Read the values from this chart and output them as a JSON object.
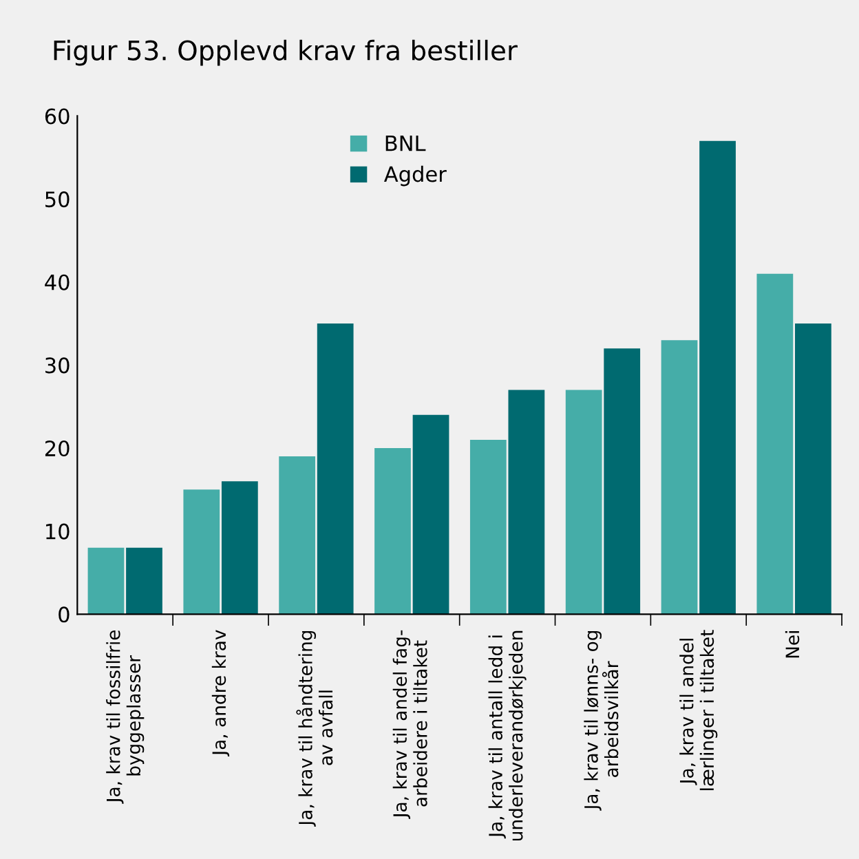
{
  "chart_data": {
    "type": "bar",
    "title": "Figur 53. Opplevd krav fra bestiller",
    "categories": [
      "Ja, krav til fossilfrie\nbyggeplasser",
      "Ja, andre krav",
      "Ja, krav til håndtering\nav avfall",
      "Ja, krav til andel fag-\narbeidere i tiltaket",
      "Ja, krav til antall ledd i\nunderleverandørkjeden",
      "Ja, krav til lønns- og\narbeidsvilkår",
      "Ja, krav til andel\nlærlinger i tiltaket",
      "Nei"
    ],
    "series": [
      {
        "name": "BNL",
        "color": "#45ada8",
        "values": [
          8,
          15,
          19,
          20,
          21,
          27,
          33,
          41
        ]
      },
      {
        "name": "Agder",
        "color": "#006a70",
        "values": [
          8,
          16,
          35,
          24,
          27,
          32,
          57,
          35
        ]
      }
    ],
    "ylim": [
      0,
      60
    ],
    "yticks": [
      0,
      10,
      20,
      30,
      40,
      50,
      60
    ],
    "grid": false,
    "legend": "top"
  }
}
